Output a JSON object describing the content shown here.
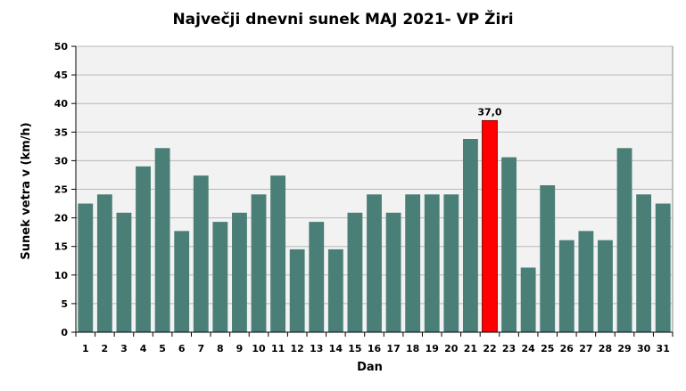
{
  "chart_data": {
    "type": "bar",
    "title": "Največji dnevni sunek MAJ 2021- VP Žiri",
    "xlabel": "Dan",
    "ylabel": "Sunek vetra  v (km/h)",
    "ylim": [
      0,
      50
    ],
    "yticks": [
      0,
      5,
      10,
      15,
      20,
      25,
      30,
      35,
      40,
      45,
      50
    ],
    "grid": true,
    "categories": [
      "1",
      "2",
      "3",
      "4",
      "5",
      "6",
      "7",
      "8",
      "9",
      "10",
      "11",
      "12",
      "13",
      "14",
      "15",
      "16",
      "17",
      "18",
      "19",
      "20",
      "21",
      "22",
      "23",
      "24",
      "25",
      "26",
      "27",
      "28",
      "29",
      "30",
      "31"
    ],
    "values": [
      22.5,
      24.1,
      20.9,
      29.0,
      32.2,
      17.7,
      27.4,
      19.3,
      20.9,
      24.1,
      27.4,
      14.5,
      19.3,
      14.5,
      20.9,
      24.1,
      20.9,
      24.1,
      24.1,
      24.1,
      33.8,
      37.0,
      30.6,
      11.3,
      25.7,
      16.1,
      17.7,
      16.1,
      32.2,
      24.1,
      22.5
    ],
    "highlight_index": 21,
    "highlight_label": "37,0",
    "colors": {
      "bar": "#4a7f78",
      "highlight": "#ff0000",
      "plot_bg": "#f2f2f2",
      "grid": "#b8b8b8"
    }
  }
}
